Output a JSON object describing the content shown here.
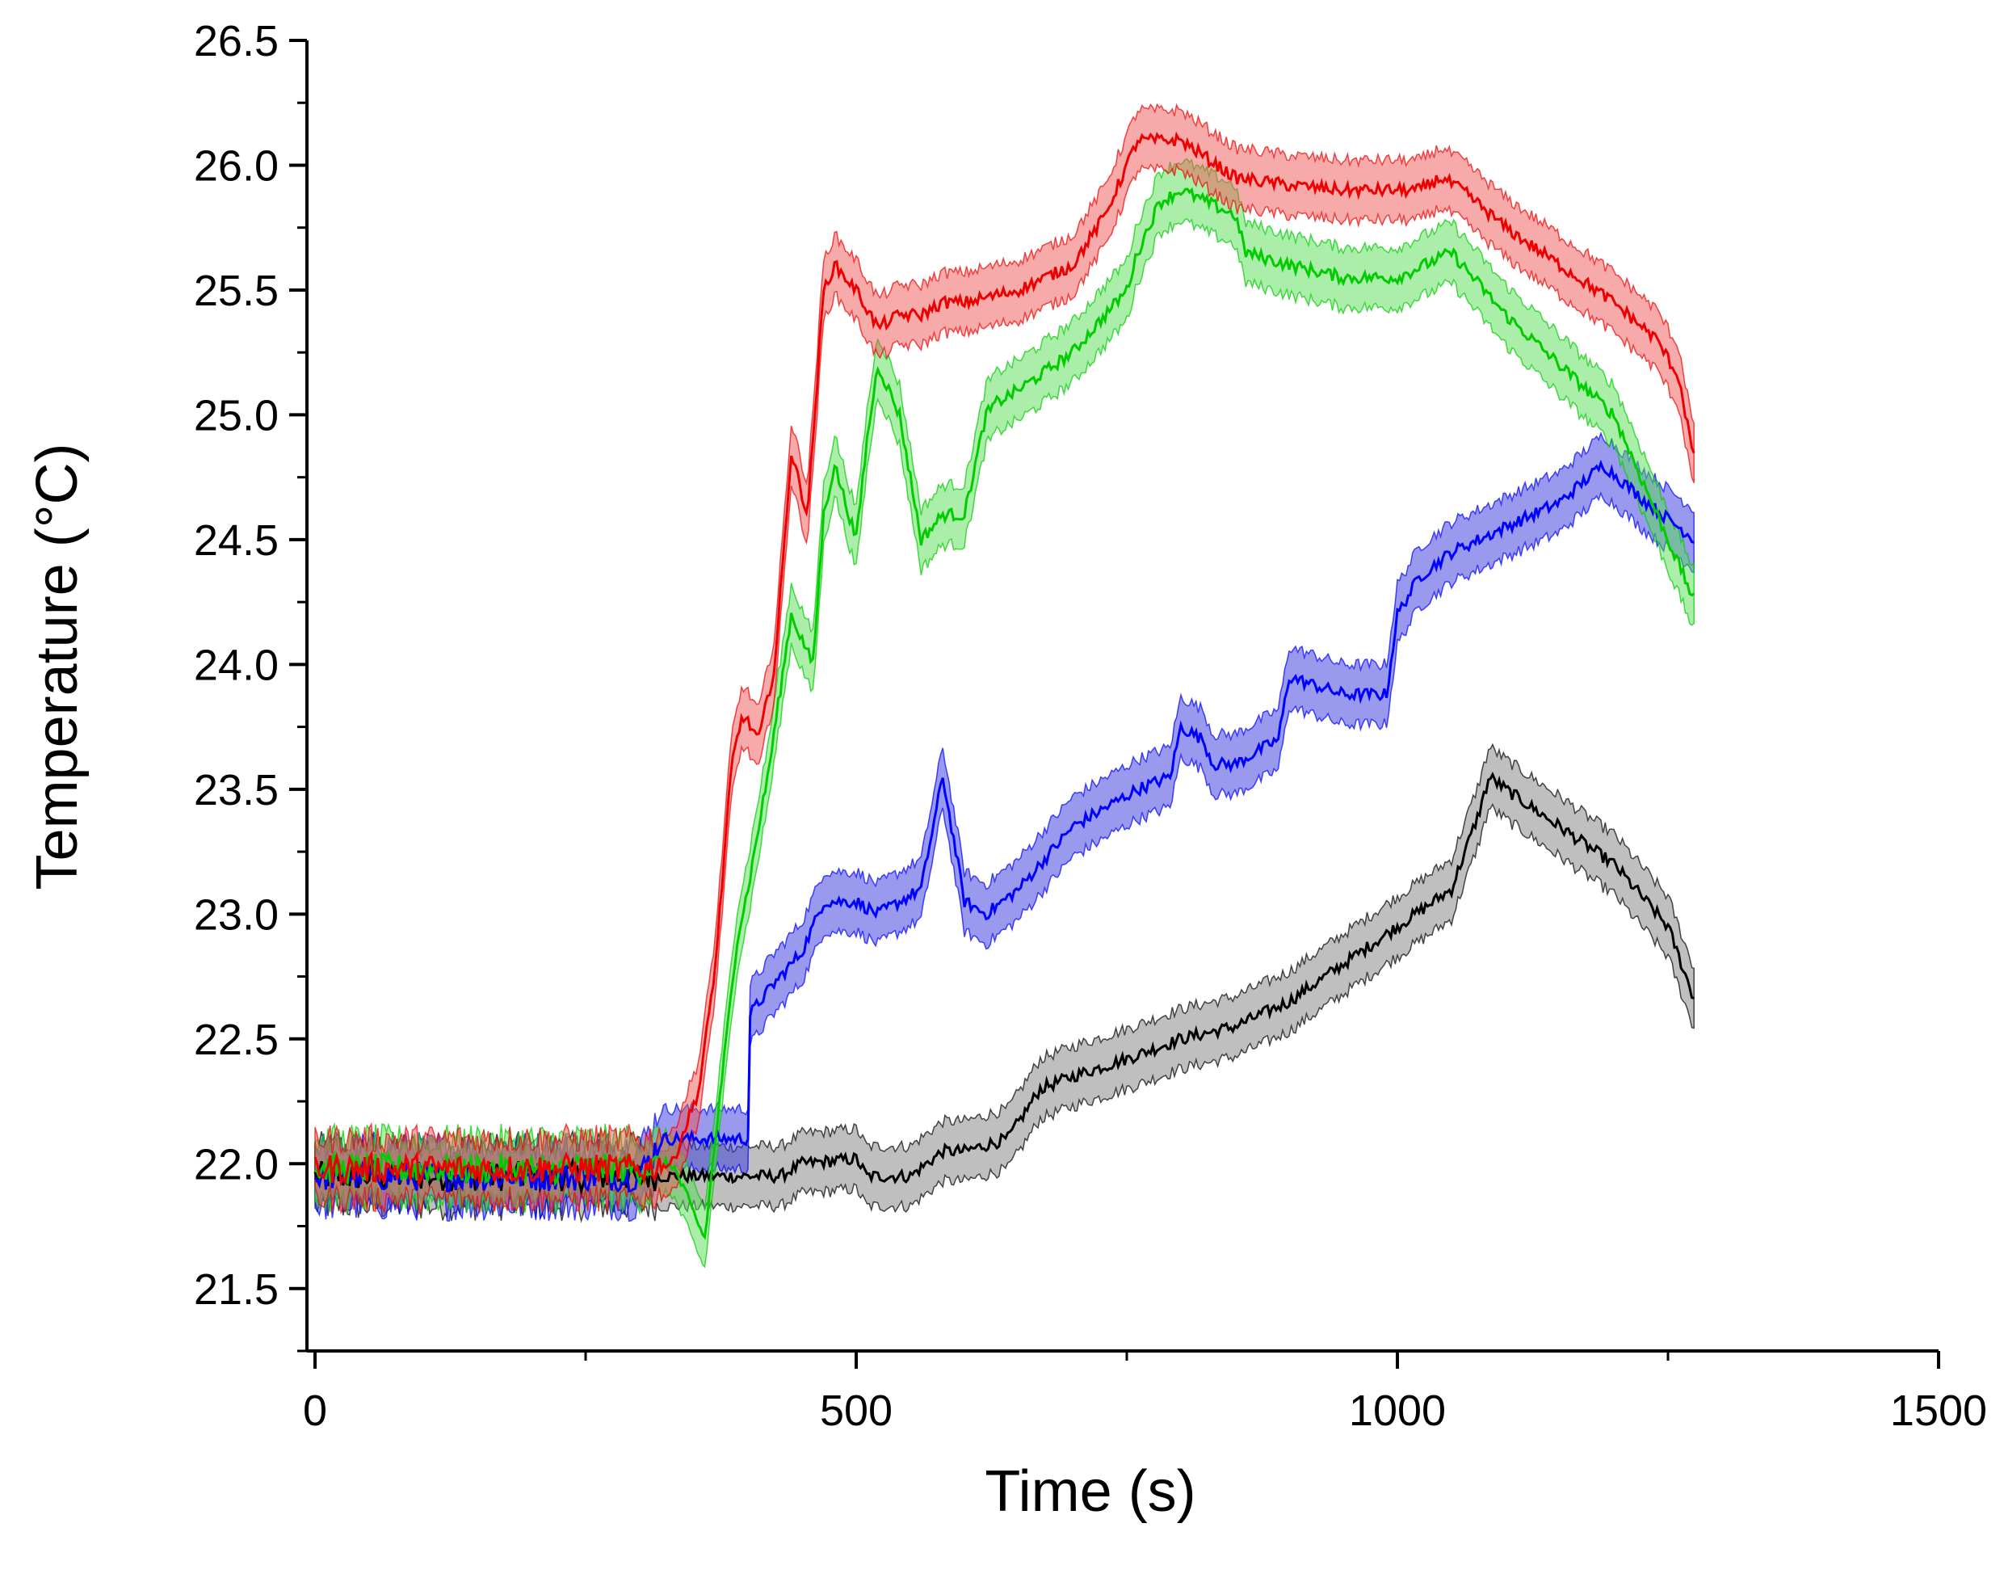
{
  "chart_data": {
    "type": "line",
    "title": "",
    "xlabel": "Time (s)",
    "ylabel": "Temperature (°C)",
    "xlim": [
      0,
      1500
    ],
    "ylim": [
      21.25,
      26.5
    ],
    "xticks": [
      0,
      500,
      1000,
      1500
    ],
    "xtick_labels": [
      "0",
      "500",
      "1000",
      "1500"
    ],
    "yticks": [
      21.5,
      22.0,
      22.5,
      23.0,
      23.5,
      24.0,
      24.5,
      25.0,
      25.5,
      26.0,
      26.5
    ],
    "ytick_labels": [
      "21.5",
      "22.0",
      "22.5",
      "23.0",
      "23.5",
      "24.0",
      "24.5",
      "25.0",
      "25.5",
      "26.0",
      "26.5"
    ],
    "grid": false,
    "legend": "none",
    "band_halfwidth": 0.12,
    "series": [
      {
        "name": "black",
        "color": "#000000",
        "band_color": "#808080",
        "x": [
          0,
          100,
          200,
          300,
          380,
          400,
          430,
          450,
          500,
          510,
          550,
          580,
          600,
          640,
          670,
          700,
          750,
          800,
          850,
          900,
          950,
          1000,
          1050,
          1075,
          1085,
          1100,
          1150,
          1200,
          1230,
          1250,
          1275
        ],
        "y": [
          21.95,
          21.95,
          21.95,
          21.95,
          21.95,
          21.95,
          21.95,
          22.0,
          22.02,
          21.95,
          21.95,
          22.05,
          22.05,
          22.1,
          22.3,
          22.35,
          22.42,
          22.5,
          22.55,
          22.65,
          22.8,
          22.95,
          23.1,
          23.4,
          23.55,
          23.5,
          23.35,
          23.2,
          23.05,
          22.95,
          22.65
        ]
      },
      {
        "name": "blue",
        "color": "#0000ff",
        "band_color": "#3333dd",
        "x": [
          0,
          100,
          200,
          300,
          320,
          400,
          402,
          420,
          450,
          470,
          500,
          520,
          560,
          580,
          600,
          620,
          650,
          700,
          720,
          760,
          790,
          800,
          820,
          830,
          850,
          890,
          900,
          950,
          990,
          1000,
          1020,
          1050,
          1100,
          1150,
          1190,
          1230,
          1275
        ],
        "y": [
          21.95,
          21.95,
          21.95,
          21.95,
          22.1,
          22.1,
          22.6,
          22.7,
          22.85,
          23.05,
          23.05,
          23.0,
          23.1,
          23.55,
          23.05,
          23.0,
          23.1,
          23.35,
          23.4,
          23.5,
          23.55,
          23.75,
          23.7,
          23.6,
          23.6,
          23.7,
          23.95,
          23.88,
          23.88,
          24.2,
          24.35,
          24.45,
          24.55,
          24.65,
          24.8,
          24.65,
          24.5
        ]
      },
      {
        "name": "green",
        "color": "#00cc00",
        "band_color": "#55dd55",
        "x": [
          0,
          100,
          200,
          300,
          330,
          360,
          370,
          390,
          400,
          420,
          440,
          460,
          470,
          480,
          500,
          510,
          520,
          540,
          560,
          580,
          600,
          620,
          630,
          650,
          700,
          750,
          760,
          780,
          800,
          850,
          860,
          900,
          950,
          1000,
          1050,
          1100,
          1150,
          1200,
          1240,
          1275
        ],
        "y": [
          21.98,
          21.98,
          21.98,
          21.98,
          22.0,
          21.7,
          22.1,
          22.9,
          23.1,
          23.6,
          24.2,
          24.0,
          24.6,
          24.8,
          24.5,
          24.9,
          25.2,
          25.0,
          24.5,
          24.6,
          24.6,
          25.0,
          25.05,
          25.1,
          25.25,
          25.5,
          25.65,
          25.85,
          25.9,
          25.8,
          25.65,
          25.6,
          25.55,
          25.55,
          25.65,
          25.4,
          25.2,
          25.0,
          24.6,
          24.25
        ]
      },
      {
        "name": "red",
        "color": "#ee0000",
        "band_color": "#ee5555",
        "x": [
          0,
          100,
          200,
          300,
          330,
          355,
          370,
          385,
          395,
          410,
          425,
          440,
          455,
          470,
          480,
          500,
          520,
          540,
          560,
          580,
          600,
          650,
          700,
          730,
          760,
          800,
          850,
          900,
          950,
          1000,
          1020,
          1040,
          1060,
          1100,
          1150,
          1200,
          1240,
          1260,
          1275
        ],
        "y": [
          21.98,
          21.98,
          21.98,
          21.98,
          22.0,
          22.3,
          22.8,
          23.6,
          23.8,
          23.7,
          24.0,
          24.85,
          24.6,
          25.5,
          25.6,
          25.5,
          25.35,
          25.4,
          25.4,
          25.45,
          25.45,
          25.5,
          25.6,
          25.8,
          26.1,
          26.1,
          25.95,
          25.92,
          25.9,
          25.9,
          25.9,
          25.95,
          25.9,
          25.75,
          25.6,
          25.45,
          25.3,
          25.15,
          24.8
        ]
      }
    ]
  }
}
